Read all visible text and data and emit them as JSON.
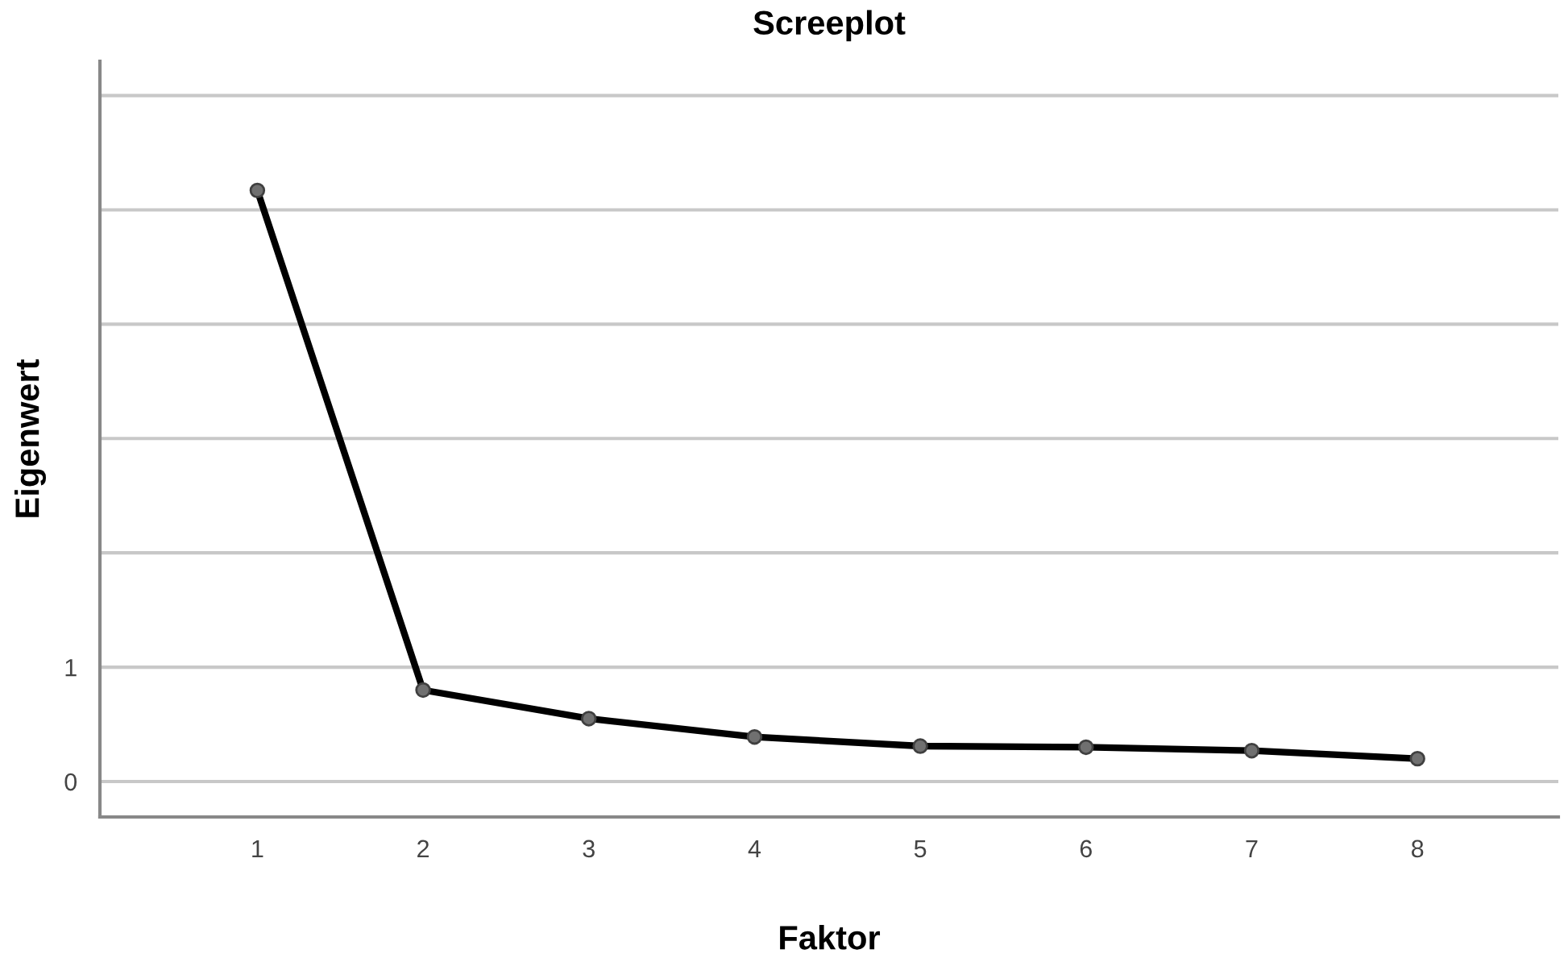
{
  "chart_data": {
    "type": "line",
    "title": "Screeplot",
    "xlabel": "Faktor",
    "ylabel": "Eigenwert",
    "x": [
      1,
      2,
      3,
      4,
      5,
      6,
      7,
      8
    ],
    "series": [
      {
        "color": "#000000",
        "values": [
          5.17,
          0.8,
          0.55,
          0.39,
          0.31,
          0.3,
          0.27,
          0.2
        ]
      }
    ],
    "xlim": [
      0.05,
      8.85
    ],
    "xticks": [
      1,
      2,
      3,
      4,
      5,
      6,
      7,
      8
    ],
    "ylim": [
      -0.31,
      6.3
    ],
    "yticks": [
      0,
      1,
      {
        "value": 2,
        "label": null
      },
      {
        "value": 3,
        "label": null
      },
      {
        "value": 4,
        "label": null
      },
      {
        "value": 5,
        "label": null
      },
      {
        "value": 6,
        "label": null
      }
    ],
    "grid": "y",
    "marker": "circle",
    "line_style": "solid"
  }
}
